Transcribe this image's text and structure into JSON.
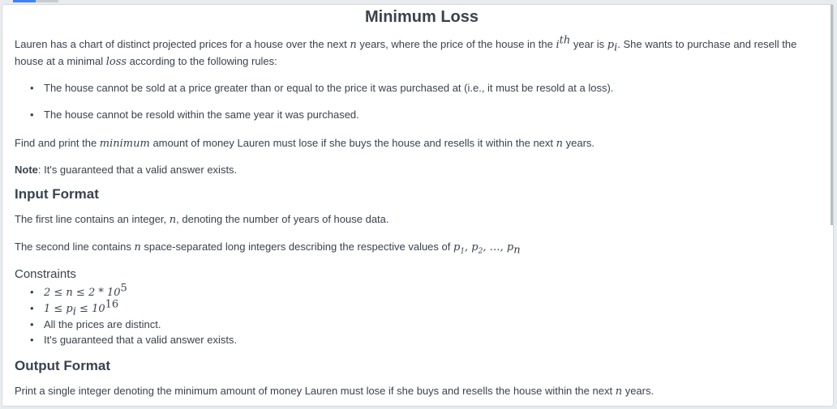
{
  "title": "Minimum Loss",
  "intro": {
    "p1_a": "Lauren has a chart of distinct projected prices for a house over the next ",
    "n": "n",
    "p1_b": " years, where the price of the house in the ",
    "i": "i",
    "th": "th",
    "p1_c": " year is ",
    "p": "p",
    "sub_i": "i",
    "p1_d": ". She wants to purchase and resell the",
    "p2_a": "house at a minimal ",
    "loss": "loss",
    "p2_b": " according to the following rules:"
  },
  "rules": [
    "The house cannot be sold at a price greater than or equal to the price it was purchased at (i.e., it must be resold at a loss).",
    "The house cannot be resold within the same year it was purchased."
  ],
  "find": {
    "a": "Find and print the ",
    "minimum": "minimum",
    "b": " amount of money Lauren must lose if she buys the house and resells it within the next ",
    "n": "n",
    "c": " years."
  },
  "note": {
    "label": "Note",
    "text": ": It's guaranteed that a valid answer exists."
  },
  "input_format": {
    "heading": "Input Format",
    "line1_a": "The first line contains an integer, ",
    "line1_n": "n",
    "line1_b": ", denoting the number of years of house data.",
    "line2_a": "The second line contains ",
    "line2_n": "n",
    "line2_b": " space-separated long integers describing the respective values of ",
    "line2_p": "p",
    "line2_rest": "…, p"
  },
  "constraints": {
    "heading": "Constraints",
    "c1": "2 ≤ n ≤ 2 * 10",
    "c1_exp": "5",
    "c2": "1 ≤ p",
    "c2_sub": "i",
    "c2_b": " ≤ 10",
    "c2_exp": "16",
    "c3": "All the prices are distinct.",
    "c4": "It's guaranteed that a valid answer exists."
  },
  "output_format": {
    "heading": "Output Format",
    "a": "Print a single integer denoting the minimum amount of money Lauren must lose if she buys and resells the house within the next ",
    "n": "n",
    "b": " years."
  }
}
